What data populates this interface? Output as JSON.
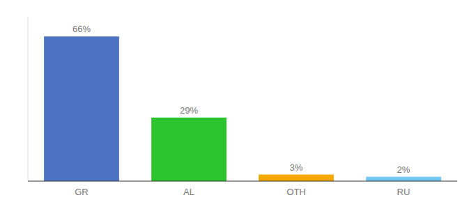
{
  "chart_data": {
    "type": "bar",
    "categories": [
      "GR",
      "AL",
      "OTH",
      "RU"
    ],
    "values": [
      66,
      29,
      3,
      2
    ],
    "value_labels": [
      "66%",
      "29%",
      "3%",
      "2%"
    ],
    "colors": [
      "#4d72c4",
      "#2dc52d",
      "#f5a800",
      "#72c8f0"
    ],
    "ylim": [
      0,
      75
    ],
    "data_labels": true,
    "tick_labels": "x",
    "grid": false
  }
}
